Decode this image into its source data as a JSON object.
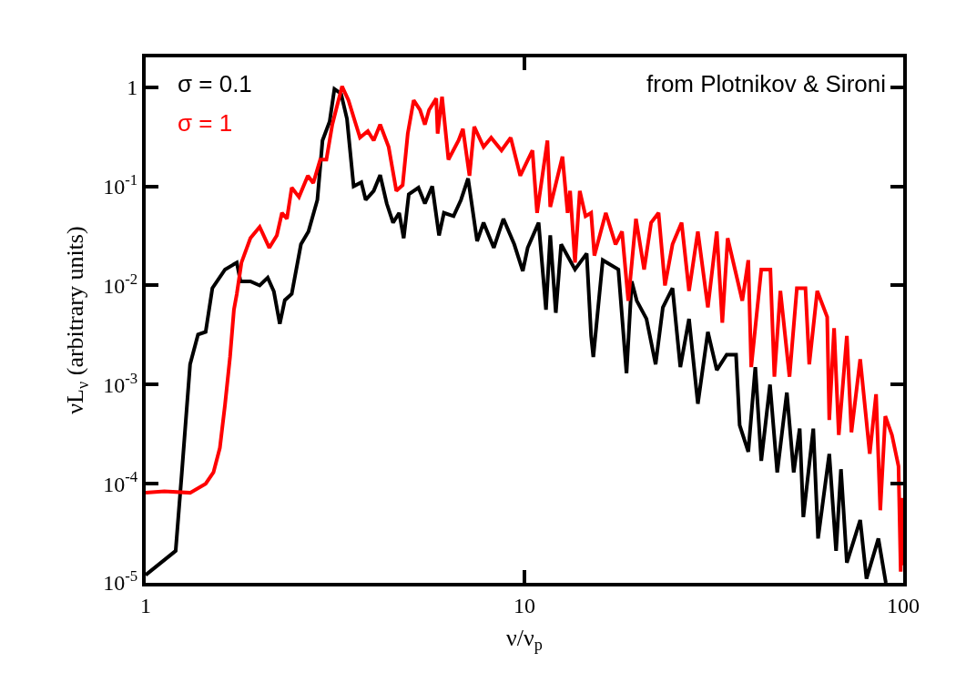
{
  "chart_data": {
    "type": "line",
    "xlabel": "ν/ν$_{p}$",
    "ylabel": "νL$_{ν}$ (arbitrary units)",
    "annotations": [
      "from Plotnikov & Sironi"
    ],
    "log": "xy",
    "legend": "top left",
    "line_style": "solid",
    "marker": "none",
    "xlim": [
      1,
      100
    ],
    "xticks": [
      1,
      10,
      100
    ],
    "ylim": [
      1e-05,
      2
    ],
    "yticks": [
      {
        "value": 1,
        "label": "1"
      },
      {
        "value": 0.1,
        "label": "10$^{-1}$"
      },
      {
        "value": 0.01,
        "label": "10$^{-2}$"
      },
      {
        "value": 0.001,
        "label": "10$^{-3}$"
      },
      {
        "value": 0.0001,
        "label": "10$^{-4}$"
      },
      {
        "value": 1e-05,
        "label": "10$^{-5}$"
      }
    ],
    "series": [
      {
        "name": "σ = 0.1",
        "color": "#000000",
        "x": [
          1.0,
          1.2,
          1.246,
          1.31,
          1.375,
          1.44,
          1.5,
          1.62,
          1.74,
          1.78,
          1.89,
          2.0,
          2.1,
          2.18,
          2.26,
          2.33,
          2.43,
          2.57,
          2.69,
          2.84,
          2.93,
          3.06,
          3.15,
          3.28,
          3.4,
          3.54,
          3.71,
          3.81,
          4.0,
          4.16,
          4.33,
          4.5,
          4.67,
          4.8,
          4.95,
          5.25,
          5.46,
          5.71,
          5.95,
          6.13,
          6.5,
          6.8,
          7.1,
          7.5,
          7.8,
          8.3,
          8.8,
          9.4,
          9.9,
          10.2,
          10.9,
          11.4,
          11.7,
          12.1,
          12.5,
          13.6,
          14.6,
          15.0,
          15.2,
          16.1,
          17.7,
          18.6,
          19.2,
          19.8,
          21,
          22.2,
          23.2,
          24.6,
          25.8,
          27.2,
          28.7,
          30.5,
          32.2,
          34.2,
          36.2,
          37.0,
          39.0,
          40.7,
          42.2,
          44.5,
          46.5,
          49.3,
          51.4,
          53.3,
          54.5,
          57.9,
          59.6,
          63.8,
          66.5,
          68.5,
          71,
          77,
          80,
          86,
          90
        ],
        "values": [
          1.2e-05,
          2.1e-05,
          0.00013,
          0.0016,
          0.0032,
          0.0034,
          0.0094,
          0.0145,
          0.017,
          0.011,
          0.011,
          0.01,
          0.012,
          0.0087,
          0.0041,
          0.0071,
          0.0082,
          0.026,
          0.035,
          0.073,
          0.29,
          0.45,
          0.96,
          0.86,
          0.48,
          0.1,
          0.11,
          0.073,
          0.09,
          0.13,
          0.067,
          0.043,
          0.054,
          0.03,
          0.083,
          0.097,
          0.067,
          0.1,
          0.032,
          0.054,
          0.05,
          0.073,
          0.12,
          0.028,
          0.043,
          0.024,
          0.047,
          0.026,
          0.014,
          0.024,
          0.043,
          0.0057,
          0.032,
          0.0053,
          0.026,
          0.0145,
          0.021,
          0.0031,
          0.0019,
          0.018,
          0.0145,
          0.0013,
          0.011,
          0.007,
          0.0046,
          0.0016,
          0.006,
          0.0094,
          0.0015,
          0.0046,
          0.00064,
          0.0034,
          0.0014,
          0.002,
          0.002,
          0.00039,
          0.00021,
          0.0015,
          0.00017,
          0.001,
          0.00013,
          0.00083,
          0.00013,
          0.00036,
          4.6e-05,
          0.00036,
          2.8e-05,
          0.0002,
          2.1e-05,
          0.00014,
          1.6e-05,
          4.3e-05,
          1.1e-05,
          2.8e-05,
          1e-05
        ]
      },
      {
        "name": "σ = 1",
        "color": "#ff0000",
        "x": [
          1.0,
          1.12,
          1.31,
          1.44,
          1.51,
          1.57,
          1.62,
          1.67,
          1.71,
          1.74,
          1.79,
          1.89,
          2.0,
          2.12,
          2.22,
          2.29,
          2.36,
          2.43,
          2.54,
          2.68,
          2.77,
          2.89,
          3.0,
          3.11,
          3.3,
          3.43,
          3.57,
          3.68,
          3.86,
          4.0,
          4.16,
          4.38,
          4.59,
          4.77,
          4.92,
          5.1,
          5.3,
          5.46,
          5.6,
          5.85,
          5.9,
          6.06,
          6.3,
          6.7,
          6.88,
          7.16,
          7.37,
          7.8,
          8.17,
          8.7,
          9.2,
          9.75,
          10.5,
          10.8,
          11.5,
          11.7,
          12.6,
          13.0,
          13.2,
          13.6,
          14.0,
          14.5,
          15.0,
          15.3,
          16.4,
          17.4,
          18.1,
          18.8,
          19.7,
          20.7,
          21.6,
          22.6,
          23.5,
          24.6,
          26.0,
          27.2,
          28.7,
          30.5,
          32.2,
          33.3,
          34.4,
          37.6,
          39.0,
          39.7,
          42.2,
          44.6,
          45.7,
          47.4,
          50.1,
          52.4,
          55.2,
          56.5,
          59.3,
          63,
          63.8,
          65.7,
          67.6,
          71,
          73,
          77,
          81.6,
          84.8,
          87,
          89.7,
          93.4,
          97.2,
          98.5,
          99.3,
          100
        ],
        "values": [
          8.1e-05,
          8.4e-05,
          8.1e-05,
          0.0001,
          0.00013,
          0.00023,
          0.00063,
          0.0019,
          0.0057,
          0.0082,
          0.017,
          0.03,
          0.039,
          0.024,
          0.032,
          0.054,
          0.047,
          0.097,
          0.078,
          0.128,
          0.108,
          0.186,
          0.186,
          0.42,
          1.02,
          0.74,
          0.45,
          0.31,
          0.36,
          0.29,
          0.42,
          0.25,
          0.09,
          0.103,
          0.34,
          0.74,
          0.59,
          0.42,
          0.59,
          0.77,
          0.34,
          0.8,
          0.186,
          0.29,
          0.38,
          0.128,
          0.4,
          0.25,
          0.31,
          0.23,
          0.31,
          0.128,
          0.23,
          0.054,
          0.29,
          0.062,
          0.2,
          0.054,
          0.09,
          0.017,
          0.09,
          0.05,
          0.054,
          0.02,
          0.054,
          0.026,
          0.035,
          0.007,
          0.047,
          0.0145,
          0.043,
          0.054,
          0.01,
          0.026,
          0.043,
          0.0088,
          0.035,
          0.006,
          0.035,
          0.0042,
          0.03,
          0.007,
          0.018,
          0.0015,
          0.0145,
          0.0145,
          0.0012,
          0.0088,
          0.0012,
          0.0094,
          0.0094,
          0.0016,
          0.0088,
          0.0048,
          0.00044,
          0.0037,
          0.00031,
          0.0031,
          0.00033,
          0.0018,
          0.0002,
          0.0008,
          5.4e-05,
          0.00048,
          0.00031,
          0.00015,
          1.3e-05,
          7.2e-05,
          1.5e-05
        ]
      }
    ]
  }
}
